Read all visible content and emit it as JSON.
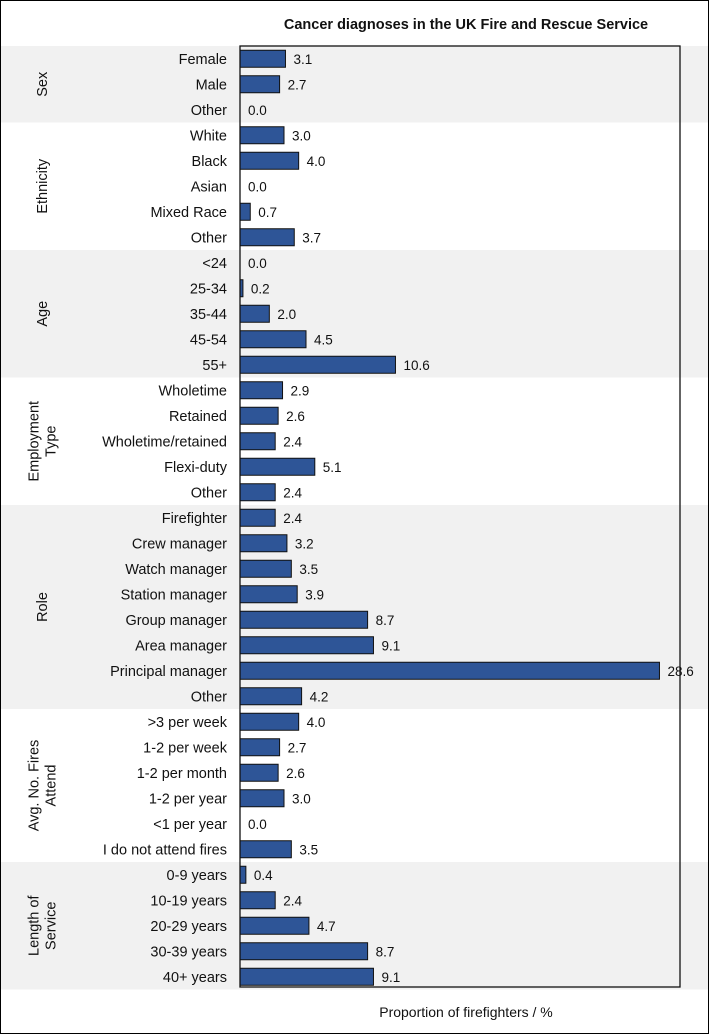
{
  "chart_data": {
    "type": "bar",
    "orientation": "horizontal",
    "title": "Cancer diagnoses in the UK Fire and Rescue Service",
    "xlabel": "Proportion of firefighters / %",
    "ylabel": "",
    "xlim": [
      0,
      30
    ],
    "bar_color": "#2e5597",
    "band_color": "#f1f1f1",
    "groups": [
      {
        "name": "Sex",
        "label_lines": [
          "Sex"
        ],
        "categories": [
          "Female",
          "Male",
          "Other"
        ],
        "values": [
          3.1,
          2.7,
          0.0
        ]
      },
      {
        "name": "Ethnicity",
        "label_lines": [
          "Ethnicity"
        ],
        "categories": [
          "White",
          "Black",
          "Asian",
          "Mixed Race",
          "Other"
        ],
        "values": [
          3.0,
          4.0,
          0.0,
          0.7,
          3.7
        ]
      },
      {
        "name": "Age",
        "label_lines": [
          "Age"
        ],
        "categories": [
          "<24",
          "25-34",
          "35-44",
          "45-54",
          "55+"
        ],
        "values": [
          0.0,
          0.2,
          2.0,
          4.5,
          10.6
        ]
      },
      {
        "name": "Employment Type",
        "label_lines": [
          "Employment",
          "Type"
        ],
        "categories": [
          "Wholetime",
          "Retained",
          "Wholetime/retained",
          "Flexi-duty",
          "Other"
        ],
        "values": [
          2.9,
          2.6,
          2.4,
          5.1,
          2.4
        ]
      },
      {
        "name": "Role",
        "label_lines": [
          "Role"
        ],
        "categories": [
          "Firefighter",
          "Crew manager",
          "Watch manager",
          "Station manager",
          "Group manager",
          "Area manager",
          "Principal manager",
          "Other"
        ],
        "values": [
          2.4,
          3.2,
          3.5,
          3.9,
          8.7,
          9.1,
          28.6,
          4.2
        ]
      },
      {
        "name": "Avg. No. Fires Attend",
        "label_lines": [
          "Avg. No. Fires",
          "Attend"
        ],
        "categories": [
          ">3 per week",
          "1-2 per week",
          "1-2 per month",
          "1-2 per year",
          "<1 per year",
          "I do not attend fires"
        ],
        "values": [
          4.0,
          2.7,
          2.6,
          3.0,
          0.0,
          3.5
        ]
      },
      {
        "name": "Length of Service",
        "label_lines": [
          "Length of",
          "Service"
        ],
        "categories": [
          "0-9 years",
          "10-19 years",
          "20-29 years",
          "30-39 years",
          "40+ years"
        ],
        "values": [
          0.4,
          2.4,
          4.7,
          8.7,
          9.1
        ]
      }
    ]
  }
}
